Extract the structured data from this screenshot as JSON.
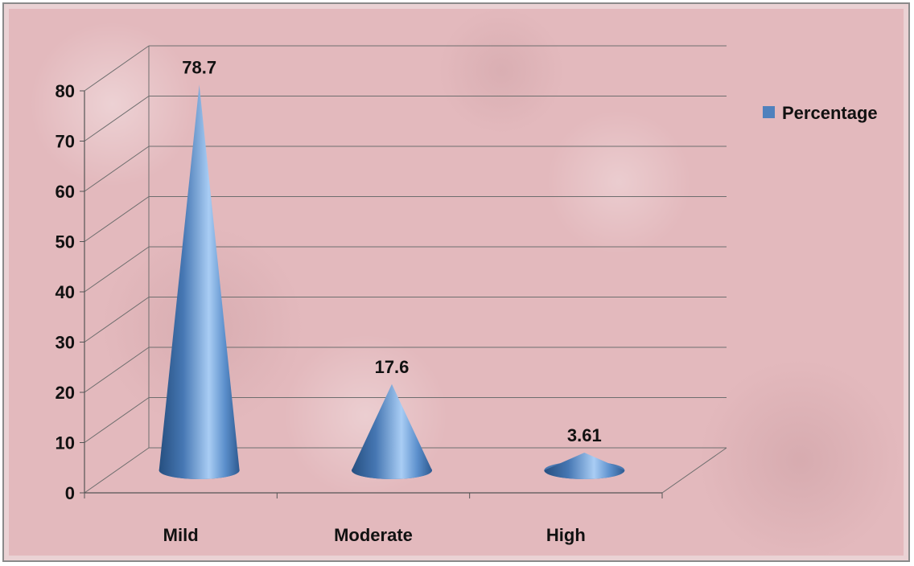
{
  "chart_data": {
    "type": "bar",
    "style": "3d-cone",
    "categories": [
      "Mild",
      "Moderate",
      "High"
    ],
    "series": [
      {
        "name": "Percentage",
        "values": [
          78.7,
          17.6,
          3.61
        ],
        "color": "#4f81bd"
      }
    ],
    "data_labels": [
      "78.7",
      "17.6",
      "3.61"
    ],
    "y_ticks": [
      0,
      10,
      20,
      30,
      40,
      50,
      60,
      70,
      80
    ],
    "ylim": [
      0,
      80
    ],
    "title": "",
    "xlabel": "",
    "ylabel": "",
    "grid": true,
    "legend_position": "top-right"
  },
  "colors": {
    "background": "#e3b9bd",
    "series": "#4f81bd",
    "gridline": "#6e6e6e"
  }
}
